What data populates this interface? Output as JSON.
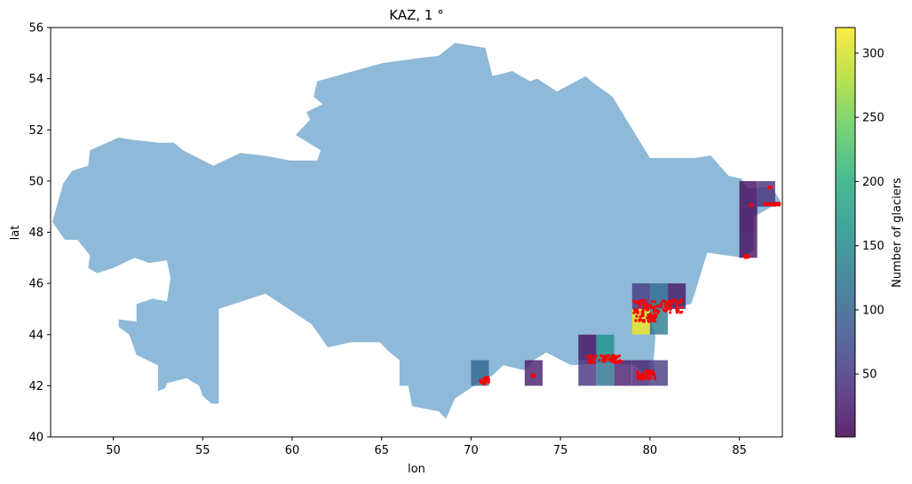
{
  "chart_data": {
    "type": "heatmap",
    "title": "KAZ, 1 °",
    "xlabel": "lon",
    "ylabel": "lat",
    "xlim": [
      46.5,
      87.4
    ],
    "ylim": [
      40,
      56
    ],
    "xticks": [
      50,
      55,
      60,
      65,
      70,
      75,
      80,
      85
    ],
    "yticks": [
      40,
      42,
      44,
      46,
      48,
      50,
      52,
      54,
      56
    ],
    "grid": false,
    "colorbar": {
      "label": "Number of glaciers",
      "min": 1,
      "max": 320,
      "ticks": [
        50,
        100,
        150,
        200,
        250,
        300
      ],
      "colormap": "viridis",
      "alpha": 0.8
    },
    "country_fill_color": "#8fb9d8",
    "glacier_point_color": "#ff0000",
    "cells": [
      {
        "lon": 85,
        "lat": 49,
        "count": 12
      },
      {
        "lon": 85,
        "lat": 48,
        "count": 10
      },
      {
        "lon": 85,
        "lat": 47,
        "count": 15
      },
      {
        "lon": 86,
        "lat": 49,
        "count": 45
      },
      {
        "lon": 79,
        "lat": 45,
        "count": 55
      },
      {
        "lon": 80,
        "lat": 45,
        "count": 110
      },
      {
        "lon": 81,
        "lat": 45,
        "count": 20
      },
      {
        "lon": 79,
        "lat": 44,
        "count": 315
      },
      {
        "lon": 80,
        "lat": 44,
        "count": 130
      },
      {
        "lon": 76,
        "lat": 43,
        "count": 15
      },
      {
        "lon": 77,
        "lat": 43,
        "count": 160
      },
      {
        "lon": 76,
        "lat": 42,
        "count": 45
      },
      {
        "lon": 77,
        "lat": 42,
        "count": 120
      },
      {
        "lon": 78,
        "lat": 42,
        "count": 25
      },
      {
        "lon": 79,
        "lat": 42,
        "count": 30
      },
      {
        "lon": 80,
        "lat": 42,
        "count": 55
      },
      {
        "lon": 70,
        "lat": 42,
        "count": 105
      },
      {
        "lon": 73,
        "lat": 42,
        "count": 25
      }
    ],
    "glacier_clusters": [
      {
        "lon": [
          86.4,
          87.3
        ],
        "lat": [
          49.05,
          49.15
        ]
      },
      {
        "lon": [
          86.6,
          86.8
        ],
        "lat": [
          49.7,
          49.8
        ]
      },
      {
        "lon": [
          85.6,
          85.7
        ],
        "lat": [
          49.0,
          49.1
        ]
      },
      {
        "lon": [
          85.3,
          85.5
        ],
        "lat": [
          47.0,
          47.1
        ]
      },
      {
        "lon": [
          79.1,
          81.8
        ],
        "lat": [
          44.85,
          45.35
        ]
      },
      {
        "lon": [
          79.2,
          80.4
        ],
        "lat": [
          44.5,
          44.85
        ]
      },
      {
        "lon": [
          76.5,
          78.4
        ],
        "lat": [
          42.9,
          43.2
        ]
      },
      {
        "lon": [
          79.2,
          80.3
        ],
        "lat": [
          42.25,
          42.6
        ]
      },
      {
        "lon": [
          70.5,
          71.0
        ],
        "lat": [
          42.05,
          42.35
        ]
      },
      {
        "lon": [
          73.4,
          73.6
        ],
        "lat": [
          42.35,
          42.45
        ]
      }
    ],
    "country_outline": [
      [
        46.6,
        48.4
      ],
      [
        47.2,
        49.9
      ],
      [
        47.7,
        50.4
      ],
      [
        48.6,
        50.6
      ],
      [
        48.7,
        51.2
      ],
      [
        50.3,
        51.7
      ],
      [
        51.2,
        51.6
      ],
      [
        52.6,
        51.5
      ],
      [
        53.4,
        51.5
      ],
      [
        53.9,
        51.2
      ],
      [
        55.6,
        50.6
      ],
      [
        57.1,
        51.1
      ],
      [
        58.4,
        51.0
      ],
      [
        59.9,
        50.8
      ],
      [
        61.4,
        50.8
      ],
      [
        61.6,
        51.2
      ],
      [
        60.2,
        51.8
      ],
      [
        61.0,
        52.4
      ],
      [
        60.8,
        52.7
      ],
      [
        61.7,
        53.0
      ],
      [
        61.2,
        53.3
      ],
      [
        61.4,
        53.9
      ],
      [
        65.0,
        54.6
      ],
      [
        67.0,
        54.8
      ],
      [
        68.2,
        54.9
      ],
      [
        69.1,
        55.4
      ],
      [
        70.8,
        55.2
      ],
      [
        71.2,
        54.1
      ],
      [
        72.3,
        54.3
      ],
      [
        73.3,
        53.9
      ],
      [
        73.7,
        54.0
      ],
      [
        74.8,
        53.5
      ],
      [
        76.4,
        54.1
      ],
      [
        76.9,
        53.8
      ],
      [
        77.9,
        53.3
      ],
      [
        80.0,
        50.9
      ],
      [
        82.5,
        50.9
      ],
      [
        83.4,
        51.0
      ],
      [
        84.4,
        50.2
      ],
      [
        85.1,
        50.1
      ],
      [
        85.5,
        49.7
      ],
      [
        86.8,
        49.8
      ],
      [
        87.3,
        49.2
      ],
      [
        85.8,
        48.6
      ],
      [
        85.8,
        47.3
      ],
      [
        85.2,
        47.0
      ],
      [
        83.2,
        47.2
      ],
      [
        82.5,
        45.6
      ],
      [
        82.3,
        45.2
      ],
      [
        80.0,
        44.9
      ],
      [
        80.3,
        43.9
      ],
      [
        80.2,
        42.9
      ],
      [
        80.3,
        42.4
      ],
      [
        79.6,
        42.5
      ],
      [
        79.2,
        42.8
      ],
      [
        77.7,
        42.9
      ],
      [
        75.6,
        42.8
      ],
      [
        74.2,
        43.3
      ],
      [
        73.5,
        43.0
      ],
      [
        73.0,
        42.6
      ],
      [
        71.8,
        42.8
      ],
      [
        71.2,
        42.4
      ],
      [
        70.4,
        42.1
      ],
      [
        69.1,
        41.5
      ],
      [
        68.6,
        40.7
      ],
      [
        68.2,
        41.0
      ],
      [
        66.7,
        41.2
      ],
      [
        66.5,
        42.0
      ],
      [
        66.0,
        42.0
      ],
      [
        66.0,
        43.0
      ],
      [
        65.3,
        43.4
      ],
      [
        64.9,
        43.7
      ],
      [
        63.3,
        43.7
      ],
      [
        62.0,
        43.5
      ],
      [
        61.1,
        44.4
      ],
      [
        58.5,
        45.6
      ],
      [
        55.9,
        45.0
      ],
      [
        55.9,
        41.3
      ],
      [
        55.5,
        41.3
      ],
      [
        55.0,
        41.6
      ],
      [
        54.8,
        42.0
      ],
      [
        54.1,
        42.3
      ],
      [
        53.0,
        42.1
      ],
      [
        52.9,
        41.9
      ],
      [
        52.5,
        41.8
      ],
      [
        52.5,
        42.8
      ],
      [
        51.3,
        43.2
      ],
      [
        50.9,
        44.0
      ],
      [
        50.3,
        44.3
      ],
      [
        50.3,
        44.6
      ],
      [
        51.3,
        44.5
      ],
      [
        51.3,
        45.2
      ],
      [
        52.2,
        45.4
      ],
      [
        53.0,
        45.3
      ],
      [
        53.2,
        46.2
      ],
      [
        53.0,
        46.9
      ],
      [
        52.0,
        46.8
      ],
      [
        51.2,
        47.0
      ],
      [
        50.0,
        46.6
      ],
      [
        49.1,
        46.4
      ],
      [
        48.6,
        46.6
      ],
      [
        48.7,
        47.1
      ],
      [
        48.0,
        47.7
      ],
      [
        47.3,
        47.7
      ],
      [
        46.6,
        48.4
      ]
    ]
  }
}
